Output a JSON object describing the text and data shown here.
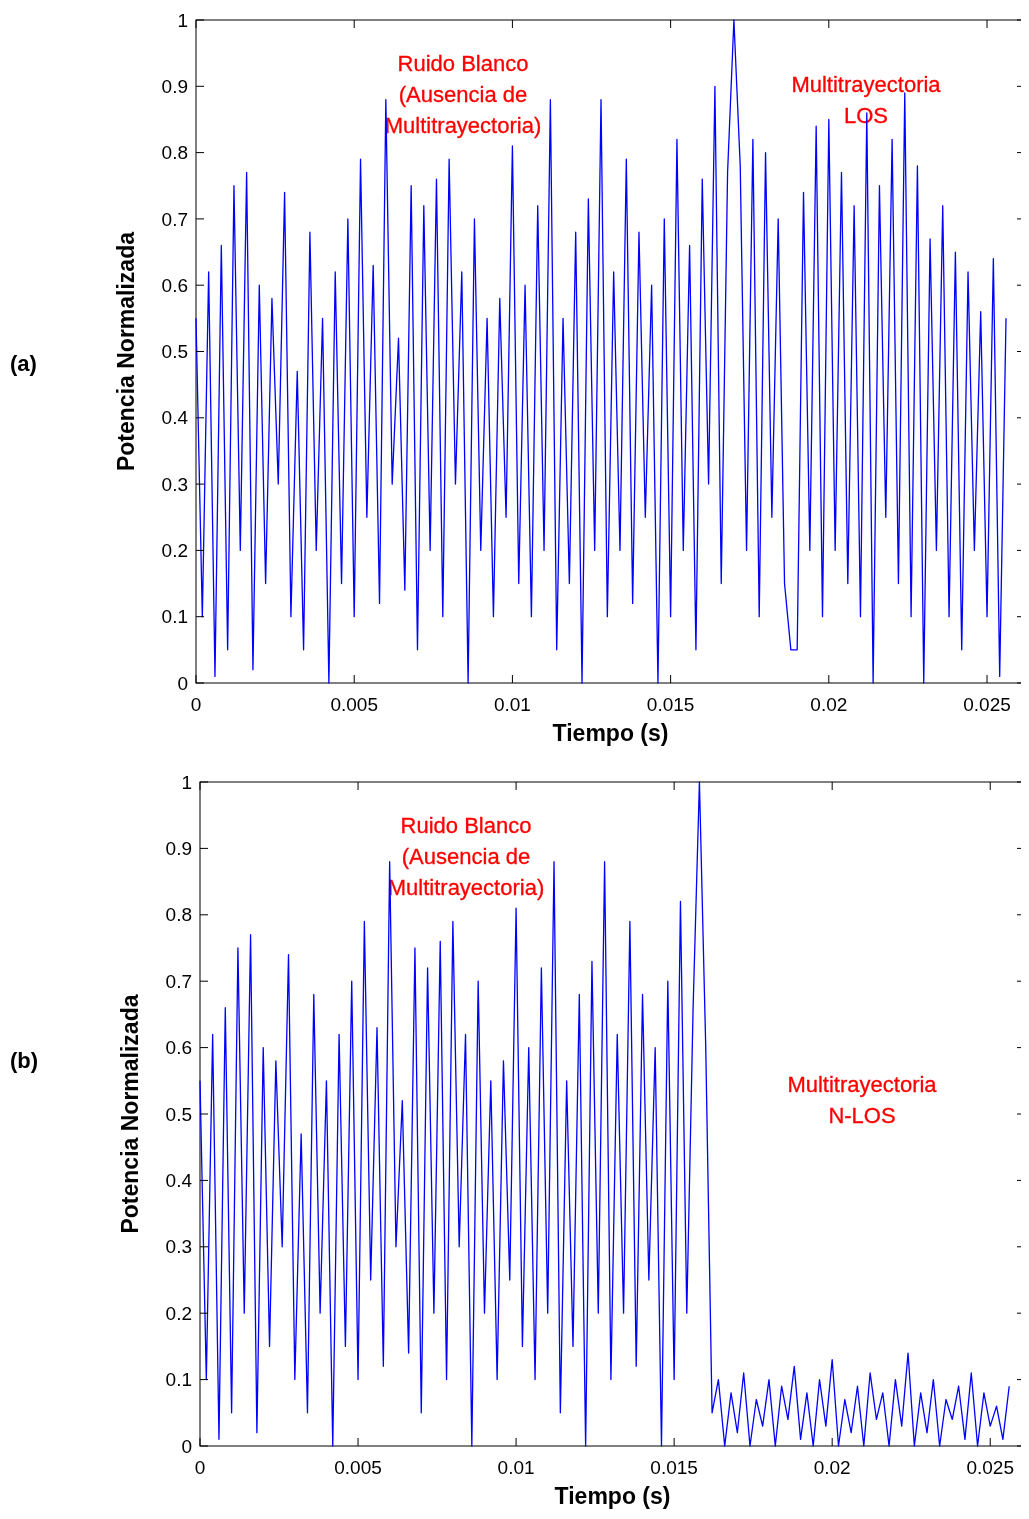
{
  "chart_data": [
    {
      "type": "line",
      "xlabel": "Tiempo (s)",
      "ylabel": "Potencia Normalizada",
      "xlim": [
        0,
        0.0262
      ],
      "ylim": [
        0,
        1
      ],
      "xticks": [
        0,
        0.005,
        0.01,
        0.015,
        0.02,
        0.025
      ],
      "yticks": [
        0,
        0.1,
        0.2,
        0.3,
        0.4,
        0.5,
        0.6,
        0.7,
        0.8,
        0.9,
        1
      ],
      "grid": false,
      "annotations": [
        "(a)",
        "Ruido Blanco\n(Ausencia de\nMultitrayectoria)",
        "Multitrayectoria\nLOS"
      ],
      "x": [
        0,
        0.0002,
        0.0004,
        0.0006,
        0.0008,
        0.001,
        0.0012,
        0.0014,
        0.0016,
        0.0018,
        0.002,
        0.0022,
        0.0024,
        0.0026,
        0.0028,
        0.003,
        0.0032,
        0.0034,
        0.0036,
        0.0038,
        0.004,
        0.0042,
        0.0044,
        0.0046,
        0.0048,
        0.005,
        0.0052,
        0.0054,
        0.0056,
        0.0058,
        0.006,
        0.0062,
        0.0064,
        0.0066,
        0.0068,
        0.007,
        0.0072,
        0.0074,
        0.0076,
        0.0078,
        0.008,
        0.0082,
        0.0084,
        0.0086,
        0.0088,
        0.009,
        0.0092,
        0.0094,
        0.0096,
        0.0098,
        0.01,
        0.0102,
        0.0104,
        0.0106,
        0.0108,
        0.011,
        0.0112,
        0.0114,
        0.0116,
        0.0118,
        0.012,
        0.0122,
        0.0124,
        0.0126,
        0.0128,
        0.013,
        0.0132,
        0.0134,
        0.0136,
        0.0138,
        0.014,
        0.0142,
        0.0144,
        0.0146,
        0.0148,
        0.015,
        0.0152,
        0.0154,
        0.0156,
        0.0158,
        0.016,
        0.0162,
        0.0164,
        0.0166,
        0.0168,
        0.017,
        0.0172,
        0.0174,
        0.0176,
        0.0178,
        0.018,
        0.0182,
        0.0184,
        0.0186,
        0.0188,
        0.019,
        0.0192,
        0.0194,
        0.0196,
        0.0198,
        0.02,
        0.0202,
        0.0204,
        0.0206,
        0.0208,
        0.021,
        0.0212,
        0.0214,
        0.0216,
        0.0218,
        0.022,
        0.0222,
        0.0224,
        0.0226,
        0.0228,
        0.023,
        0.0232,
        0.0234,
        0.0236,
        0.0238,
        0.024,
        0.0242,
        0.0244,
        0.0246,
        0.0248,
        0.025,
        0.0252,
        0.0254,
        0.0256
      ],
      "series": [
        {
          "color": "#0000ff",
          "values": [
            0.55,
            0.1,
            0.62,
            0.01,
            0.66,
            0.05,
            0.75,
            0.2,
            0.77,
            0.02,
            0.6,
            0.15,
            0.58,
            0.3,
            0.74,
            0.1,
            0.47,
            0.05,
            0.68,
            0.2,
            0.55,
            0.0,
            0.62,
            0.15,
            0.7,
            0.1,
            0.79,
            0.25,
            0.63,
            0.12,
            0.88,
            0.3,
            0.52,
            0.14,
            0.75,
            0.05,
            0.72,
            0.2,
            0.76,
            0.1,
            0.79,
            0.3,
            0.62,
            0.0,
            0.7,
            0.2,
            0.55,
            0.1,
            0.58,
            0.25,
            0.81,
            0.15,
            0.6,
            0.1,
            0.72,
            0.2,
            0.88,
            0.05,
            0.55,
            0.15,
            0.68,
            0.0,
            0.73,
            0.2,
            0.88,
            0.1,
            0.62,
            0.2,
            0.79,
            0.12,
            0.68,
            0.25,
            0.6,
            0.0,
            0.7,
            0.1,
            0.82,
            0.2,
            0.66,
            0.05,
            0.76,
            0.3,
            0.9,
            0.15,
            0.77,
            1.0,
            0.78,
            0.2,
            0.82,
            0.1,
            0.8,
            0.25,
            0.7,
            0.15,
            0.05,
            0.05,
            0.74,
            0.2,
            0.84,
            0.1,
            0.85,
            0.2,
            0.77,
            0.15,
            0.72,
            0.1,
            0.86,
            0.0,
            0.75,
            0.25,
            0.82,
            0.15,
            0.89,
            0.1,
            0.78,
            0.0,
            0.67,
            0.2,
            0.72,
            0.1,
            0.65,
            0.05,
            0.62,
            0.2,
            0.56,
            0.1,
            0.64,
            0.01,
            0.55
          ]
        }
      ]
    },
    {
      "type": "line",
      "xlabel": "Tiempo (s)",
      "ylabel": "Potencia Normalizada",
      "xlim": [
        0,
        0.0261
      ],
      "ylim": [
        0,
        1
      ],
      "xticks": [
        0,
        0.005,
        0.01,
        0.015,
        0.02,
        0.025
      ],
      "yticks": [
        0,
        0.1,
        0.2,
        0.3,
        0.4,
        0.5,
        0.6,
        0.7,
        0.8,
        0.9,
        1
      ],
      "grid": false,
      "annotations": [
        "(b)",
        "Ruido Blanco\n(Ausencia de\nMultitrayectoria)",
        "Multitrayectoria\nN-LOS"
      ],
      "x": [
        0,
        0.0002,
        0.0004,
        0.0006,
        0.0008,
        0.001,
        0.0012,
        0.0014,
        0.0016,
        0.0018,
        0.002,
        0.0022,
        0.0024,
        0.0026,
        0.0028,
        0.003,
        0.0032,
        0.0034,
        0.0036,
        0.0038,
        0.004,
        0.0042,
        0.0044,
        0.0046,
        0.0048,
        0.005,
        0.0052,
        0.0054,
        0.0056,
        0.0058,
        0.006,
        0.0062,
        0.0064,
        0.0066,
        0.0068,
        0.007,
        0.0072,
        0.0074,
        0.0076,
        0.0078,
        0.008,
        0.0082,
        0.0084,
        0.0086,
        0.0088,
        0.009,
        0.0092,
        0.0094,
        0.0096,
        0.0098,
        0.01,
        0.0102,
        0.0104,
        0.0106,
        0.0108,
        0.011,
        0.0112,
        0.0114,
        0.0116,
        0.0118,
        0.012,
        0.0122,
        0.0124,
        0.0126,
        0.0128,
        0.013,
        0.0132,
        0.0134,
        0.0136,
        0.0138,
        0.014,
        0.0142,
        0.0144,
        0.0146,
        0.0148,
        0.015,
        0.0152,
        0.0154,
        0.0156,
        0.0158,
        0.016,
        0.0162,
        0.0164,
        0.0166,
        0.0168,
        0.017,
        0.0172,
        0.0174,
        0.0176,
        0.0178,
        0.018,
        0.0182,
        0.0184,
        0.0186,
        0.0188,
        0.019,
        0.0192,
        0.0194,
        0.0196,
        0.0198,
        0.02,
        0.0202,
        0.0204,
        0.0206,
        0.0208,
        0.021,
        0.0212,
        0.0214,
        0.0216,
        0.0218,
        0.022,
        0.0222,
        0.0224,
        0.0226,
        0.0228,
        0.023,
        0.0232,
        0.0234,
        0.0236,
        0.0238,
        0.024,
        0.0242,
        0.0244,
        0.0246,
        0.0248,
        0.025,
        0.0252,
        0.0254,
        0.0256
      ],
      "series": [
        {
          "color": "#0000ff",
          "values": [
            0.55,
            0.1,
            0.62,
            0.01,
            0.66,
            0.05,
            0.75,
            0.2,
            0.77,
            0.02,
            0.6,
            0.15,
            0.58,
            0.3,
            0.74,
            0.1,
            0.47,
            0.05,
            0.68,
            0.2,
            0.55,
            0.0,
            0.62,
            0.15,
            0.7,
            0.1,
            0.79,
            0.25,
            0.63,
            0.12,
            0.88,
            0.3,
            0.52,
            0.14,
            0.75,
            0.05,
            0.72,
            0.2,
            0.76,
            0.1,
            0.79,
            0.3,
            0.62,
            0.0,
            0.7,
            0.2,
            0.55,
            0.1,
            0.58,
            0.25,
            0.81,
            0.15,
            0.6,
            0.1,
            0.72,
            0.2,
            0.88,
            0.05,
            0.55,
            0.15,
            0.68,
            0.0,
            0.73,
            0.2,
            0.88,
            0.1,
            0.62,
            0.2,
            0.79,
            0.12,
            0.68,
            0.25,
            0.6,
            0.0,
            0.7,
            0.1,
            0.82,
            0.2,
            0.66,
            1.0,
            0.6,
            0.05,
            0.1,
            0.0,
            0.08,
            0.02,
            0.11,
            0.0,
            0.07,
            0.03,
            0.1,
            0.0,
            0.09,
            0.04,
            0.12,
            0.01,
            0.08,
            0.0,
            0.1,
            0.03,
            0.13,
            0.0,
            0.07,
            0.02,
            0.09,
            0.0,
            0.11,
            0.04,
            0.08,
            0.0,
            0.1,
            0.03,
            0.14,
            0.0,
            0.08,
            0.02,
            0.1,
            0.0,
            0.07,
            0.04,
            0.09,
            0.01,
            0.11,
            0.0,
            0.08,
            0.03,
            0.06,
            0.01,
            0.09
          ]
        }
      ]
    }
  ]
}
